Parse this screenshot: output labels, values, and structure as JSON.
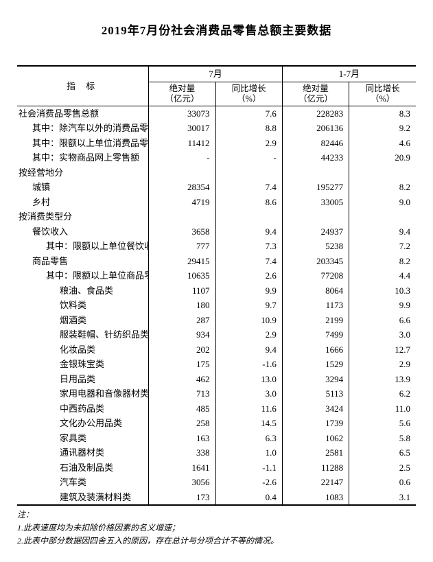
{
  "title": "2019年7月份社会消费品零售总额主要数据",
  "headers": {
    "indicator": "指 标",
    "period1": "7月",
    "period2": "1-7月",
    "abs_label_line1": "绝对量",
    "abs_label_line2": "（亿元）",
    "yoy_label_line1": "同比增长",
    "yoy_label_line2": "（%）"
  },
  "rows": [
    {
      "label": "社会消费品零售总额",
      "indent": 0,
      "p1_abs": "33073",
      "p1_yoy": "7.6",
      "p2_abs": "228283",
      "p2_yoy": "8.3"
    },
    {
      "label": "其中：除汽车以外的消费品零售额",
      "indent": 1,
      "p1_abs": "30017",
      "p1_yoy": "8.8",
      "p2_abs": "206136",
      "p2_yoy": "9.2"
    },
    {
      "label": "其中：限额以上单位消费品零售额",
      "indent": 1,
      "p1_abs": "11412",
      "p1_yoy": "2.9",
      "p2_abs": "82446",
      "p2_yoy": "4.6"
    },
    {
      "label": "其中：实物商品网上零售额",
      "indent": 1,
      "p1_abs": "-",
      "p1_yoy": "-",
      "p2_abs": "44233",
      "p2_yoy": "20.9"
    },
    {
      "label": "按经营地分",
      "indent": 0,
      "p1_abs": "",
      "p1_yoy": "",
      "p2_abs": "",
      "p2_yoy": ""
    },
    {
      "label": "城镇",
      "indent": 1,
      "p1_abs": "28354",
      "p1_yoy": "7.4",
      "p2_abs": "195277",
      "p2_yoy": "8.2"
    },
    {
      "label": "乡村",
      "indent": 1,
      "p1_abs": "4719",
      "p1_yoy": "8.6",
      "p2_abs": "33005",
      "p2_yoy": "9.0"
    },
    {
      "label": "按消费类型分",
      "indent": 0,
      "p1_abs": "",
      "p1_yoy": "",
      "p2_abs": "",
      "p2_yoy": ""
    },
    {
      "label": "餐饮收入",
      "indent": 1,
      "p1_abs": "3658",
      "p1_yoy": "9.4",
      "p2_abs": "24937",
      "p2_yoy": "9.4"
    },
    {
      "label": "其中：限额以上单位餐饮收入",
      "indent": 2,
      "p1_abs": "777",
      "p1_yoy": "7.3",
      "p2_abs": "5238",
      "p2_yoy": "7.2"
    },
    {
      "label": "商品零售",
      "indent": 1,
      "p1_abs": "29415",
      "p1_yoy": "7.4",
      "p2_abs": "203345",
      "p2_yoy": "8.2"
    },
    {
      "label": "其中：限额以上单位商品零售",
      "indent": 2,
      "p1_abs": "10635",
      "p1_yoy": "2.6",
      "p2_abs": "77208",
      "p2_yoy": "4.4"
    },
    {
      "label": "粮油、食品类",
      "indent": 3,
      "p1_abs": "1107",
      "p1_yoy": "9.9",
      "p2_abs": "8064",
      "p2_yoy": "10.3"
    },
    {
      "label": "饮料类",
      "indent": 3,
      "p1_abs": "180",
      "p1_yoy": "9.7",
      "p2_abs": "1173",
      "p2_yoy": "9.9"
    },
    {
      "label": "烟酒类",
      "indent": 3,
      "p1_abs": "287",
      "p1_yoy": "10.9",
      "p2_abs": "2199",
      "p2_yoy": "6.6"
    },
    {
      "label": "服装鞋帽、针纺织品类",
      "indent": 3,
      "p1_abs": "934",
      "p1_yoy": "2.9",
      "p2_abs": "7499",
      "p2_yoy": "3.0"
    },
    {
      "label": "化妆品类",
      "indent": 3,
      "p1_abs": "202",
      "p1_yoy": "9.4",
      "p2_abs": "1666",
      "p2_yoy": "12.7"
    },
    {
      "label": "金银珠宝类",
      "indent": 3,
      "p1_abs": "175",
      "p1_yoy": "-1.6",
      "p2_abs": "1529",
      "p2_yoy": "2.9"
    },
    {
      "label": "日用品类",
      "indent": 3,
      "p1_abs": "462",
      "p1_yoy": "13.0",
      "p2_abs": "3294",
      "p2_yoy": "13.9"
    },
    {
      "label": "家用电器和音像器材类",
      "indent": 3,
      "p1_abs": "713",
      "p1_yoy": "3.0",
      "p2_abs": "5113",
      "p2_yoy": "6.2"
    },
    {
      "label": "中西药品类",
      "indent": 3,
      "p1_abs": "485",
      "p1_yoy": "11.6",
      "p2_abs": "3424",
      "p2_yoy": "11.0"
    },
    {
      "label": "文化办公用品类",
      "indent": 3,
      "p1_abs": "258",
      "p1_yoy": "14.5",
      "p2_abs": "1739",
      "p2_yoy": "5.6"
    },
    {
      "label": "家具类",
      "indent": 3,
      "p1_abs": "163",
      "p1_yoy": "6.3",
      "p2_abs": "1062",
      "p2_yoy": "5.8"
    },
    {
      "label": "通讯器材类",
      "indent": 3,
      "p1_abs": "338",
      "p1_yoy": "1.0",
      "p2_abs": "2581",
      "p2_yoy": "6.5"
    },
    {
      "label": "石油及制品类",
      "indent": 3,
      "p1_abs": "1641",
      "p1_yoy": "-1.1",
      "p2_abs": "11288",
      "p2_yoy": "2.5"
    },
    {
      "label": "汽车类",
      "indent": 3,
      "p1_abs": "3056",
      "p1_yoy": "-2.6",
      "p2_abs": "22147",
      "p2_yoy": "0.6"
    },
    {
      "label": "建筑及装潢材料类",
      "indent": 3,
      "p1_abs": "173",
      "p1_yoy": "0.4",
      "p2_abs": "1083",
      "p2_yoy": "3.1"
    }
  ],
  "footnotes": {
    "note_label": "注：",
    "note1": "1.此表速度均为未扣除价格因素的名义增速；",
    "note2": "2.此表中部分数据因四舍五入的原因，存在总计与分项合计不等的情况。"
  }
}
